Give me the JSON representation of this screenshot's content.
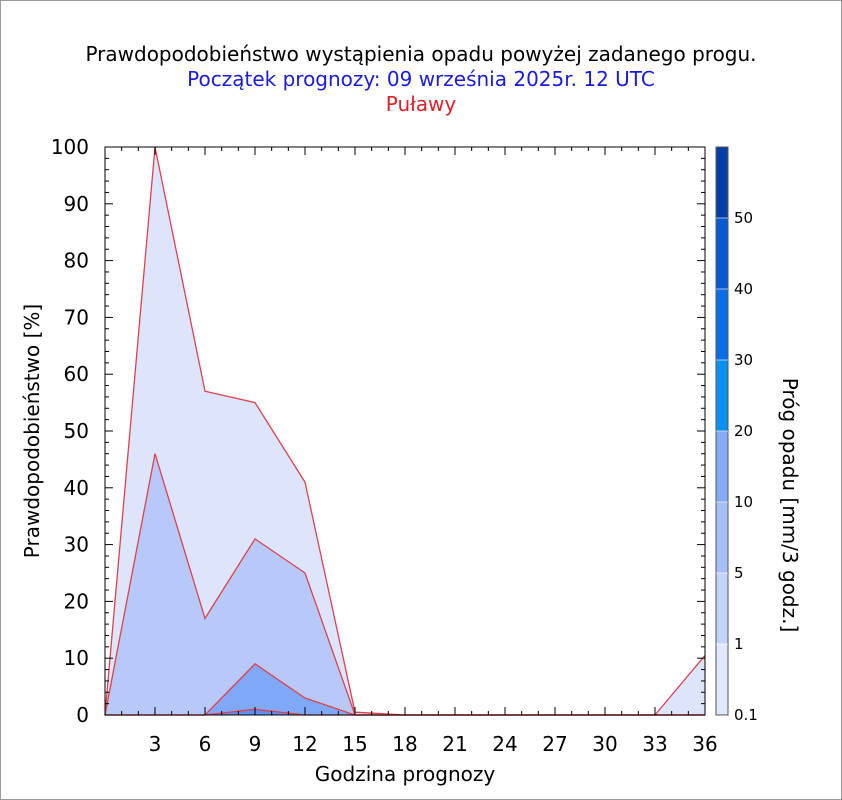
{
  "header": {
    "title": "Prawdopodobieństwo wystąpienia opadu powyżej zadanego progu.",
    "subtitle": "Początek prognozy: 09 września 2025r. 12 UTC",
    "location": "Puławy"
  },
  "colors": {
    "title": "#000000",
    "subtitle": "#1a1ae0",
    "location": "#e0202a",
    "outline": "#e0404c"
  },
  "chart_data": {
    "type": "area",
    "title": "Prawdopodobieństwo wystąpienia opadu powyżej zadanego progu.",
    "xlabel": "Godzina prognozy",
    "ylabel": "Prawdopodobieństwo [%]",
    "xlim": [
      0,
      36
    ],
    "ylim": [
      0,
      100
    ],
    "x_ticks": [
      3,
      6,
      9,
      12,
      15,
      18,
      21,
      24,
      27,
      30,
      33,
      36
    ],
    "y_ticks": [
      0,
      10,
      20,
      30,
      40,
      50,
      60,
      70,
      80,
      90,
      100
    ],
    "x": [
      0,
      3,
      6,
      9,
      12,
      15,
      18,
      21,
      24,
      27,
      30,
      33,
      36
    ],
    "series": [
      {
        "name": "0.1",
        "color": "#dce5fc",
        "values": [
          0,
          100,
          57,
          55,
          41,
          0.5,
          0,
          0,
          0,
          0,
          0,
          0,
          10.5
        ]
      },
      {
        "name": "1",
        "color": "#b6c9f9",
        "values": [
          0,
          46,
          17,
          31,
          25,
          0,
          0,
          0,
          0,
          0,
          0,
          0,
          0
        ]
      },
      {
        "name": "5",
        "color": "#7fa8f8",
        "values": [
          0,
          0,
          0,
          9,
          3,
          0,
          0,
          0,
          0,
          0,
          0,
          0,
          0
        ]
      },
      {
        "name": "10",
        "color": "#5b8ff3",
        "values": [
          0,
          0,
          0,
          1,
          0,
          0,
          0,
          0,
          0,
          0,
          0,
          0,
          0
        ]
      }
    ],
    "colorbar": {
      "label": "Próg opadu [mm/3 godz.]",
      "levels": [
        "0.1",
        "1",
        "5",
        "10",
        "20",
        "30",
        "40",
        "50"
      ],
      "colors": [
        "#e0e8fd",
        "#c3d3fa",
        "#a6bff8",
        "#86abf5",
        "#0a90f0",
        "#0a6ee6",
        "#085ad3",
        "#063ea8"
      ]
    },
    "grid": false,
    "legend": "colorbar right"
  }
}
